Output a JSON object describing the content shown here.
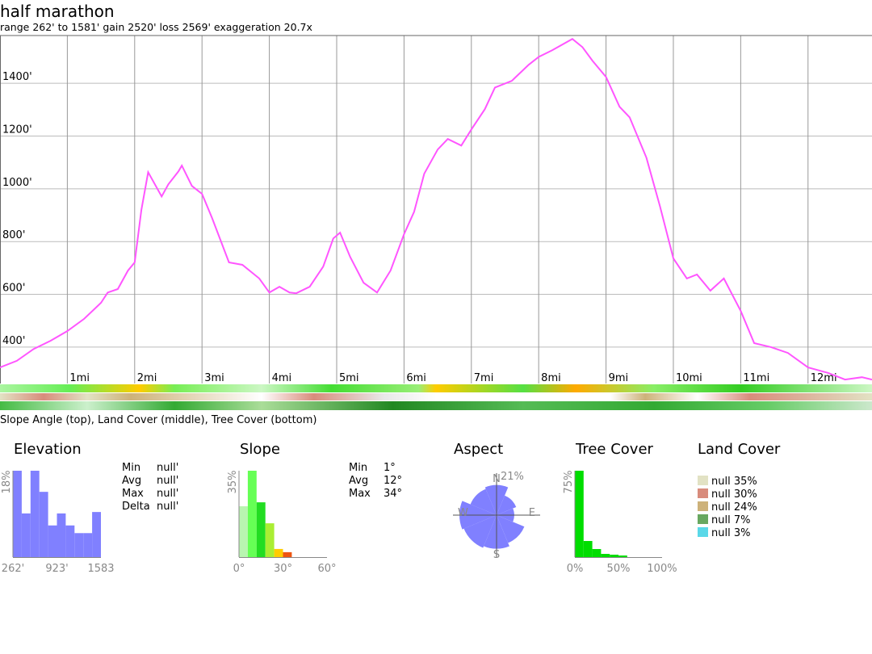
{
  "header": {
    "title": "half marathon",
    "stats": "range 262' to 1581'  gain 2520'  loss 2569'  exaggeration 20.7x"
  },
  "chart_data": [
    {
      "type": "line",
      "color": "#ff55ff",
      "grid": true,
      "x": [
        0,
        0.25,
        0.5,
        0.75,
        1.0,
        1.25,
        1.5,
        1.6,
        1.75,
        1.9,
        2.0,
        2.1,
        2.2,
        2.4,
        2.5,
        2.65,
        2.7,
        2.85,
        3.0,
        3.15,
        3.4,
        3.6,
        3.85,
        4.0,
        4.15,
        4.3,
        4.4,
        4.6,
        4.8,
        4.95,
        5.05,
        5.2,
        5.4,
        5.6,
        5.8,
        6.0,
        6.15,
        6.3,
        6.5,
        6.65,
        6.85,
        7.0,
        7.2,
        7.35,
        7.6,
        7.85,
        8.0,
        8.2,
        8.5,
        8.65,
        8.8,
        9.0,
        9.2,
        9.35,
        9.6,
        9.8,
        10.0,
        10.2,
        10.35,
        10.55,
        10.75,
        11.0,
        11.2,
        11.45,
        11.7,
        12.0,
        12.3,
        12.55,
        12.8,
        12.95
      ],
      "values": [
        323,
        348,
        393,
        424,
        461,
        507,
        568,
        607,
        620,
        690,
        721,
        920,
        1063,
        971,
        1017,
        1066,
        1088,
        1011,
        981,
        889,
        721,
        712,
        660,
        607,
        629,
        607,
        604,
        629,
        705,
        812,
        834,
        742,
        644,
        607,
        690,
        828,
        913,
        1057,
        1149,
        1189,
        1164,
        1225,
        1302,
        1384,
        1409,
        1470,
        1500,
        1525,
        1568,
        1537,
        1485,
        1424,
        1311,
        1271,
        1118,
        935,
        736,
        660,
        675,
        614,
        660,
        537,
        415,
        400,
        378,
        323,
        302,
        277,
        286,
        277
      ],
      "xlim": [
        0,
        12.95
      ],
      "ylim": [
        262,
        1581
      ],
      "xticks": [
        {
          "value": 1,
          "label": "1mi"
        },
        {
          "value": 2,
          "label": "2mi"
        },
        {
          "value": 3,
          "label": "3mi"
        },
        {
          "value": 4,
          "label": "4mi"
        },
        {
          "value": 5,
          "label": "5mi"
        },
        {
          "value": 6,
          "label": "6mi"
        },
        {
          "value": 7,
          "label": "7mi"
        },
        {
          "value": 8,
          "label": "8mi"
        },
        {
          "value": 9,
          "label": "9mi"
        },
        {
          "value": 10,
          "label": "10mi"
        },
        {
          "value": 11,
          "label": "11mi"
        },
        {
          "value": 12,
          "label": "12mi"
        }
      ],
      "yticks": [
        {
          "value": 400,
          "label": "400'"
        },
        {
          "value": 600,
          "label": "600'"
        },
        {
          "value": 800,
          "label": "800'"
        },
        {
          "value": 1000,
          "label": "1000'"
        },
        {
          "value": 1200,
          "label": "1200'"
        },
        {
          "value": 1400,
          "label": "1400'"
        }
      ],
      "caption": "Slope Angle (top), Land Cover (middle), Tree Cover (bottom)"
    },
    {
      "type": "histogram",
      "title": "Elevation",
      "color": "#8080ff",
      "bins": [
        262,
        394.1,
        526.2,
        658.3,
        790.4,
        922.5,
        1054.6,
        1186.7,
        1318.8,
        1450.9,
        1583
      ],
      "values": [
        18,
        9.1,
        18,
        13.6,
        6.6,
        9.1,
        6.6,
        5.0,
        5.0,
        9.4
      ],
      "xlim": [
        262,
        1583
      ],
      "ylim": [
        0,
        18
      ],
      "xticks": [
        {
          "value": 262,
          "label": "262'"
        },
        {
          "value": 923,
          "label": "923'"
        },
        1583
      ],
      "yticks": [
        {
          "value": 18,
          "label": "18%"
        }
      ]
    },
    {
      "type": "histogram",
      "title": "Slope",
      "bins": [
        0,
        6,
        12,
        18,
        24,
        30,
        36
      ],
      "values": [
        20.6,
        35,
        22.2,
        13.7,
        3.3,
        2
      ],
      "colors": [
        "#b8f5b0",
        "#66ff55",
        "#22dd22",
        "#aaee33",
        "#ffcc00",
        "#ee5511"
      ],
      "xlim": [
        0,
        60
      ],
      "ylim": [
        0,
        35
      ],
      "xticks": [
        {
          "value": 0,
          "label": "0°"
        },
        {
          "value": 30,
          "label": "30°"
        },
        {
          "value": 60,
          "label": "60°"
        }
      ],
      "yticks": [
        {
          "value": 35,
          "label": "35%"
        }
      ]
    },
    {
      "type": "rose",
      "title": "Aspect",
      "color": "#8080ff",
      "categories": [
        "N",
        null,
        "E",
        null,
        "S",
        null,
        "W",
        null
      ],
      "values": [
        17,
        12,
        10,
        17,
        19,
        20,
        21,
        16
      ],
      "rlim": [
        0,
        21
      ],
      "rticks": [
        {
          "value": 21,
          "label": "21%"
        }
      ]
    },
    {
      "type": "histogram",
      "title": "Tree Cover",
      "color": "#00dd00",
      "bins": [
        0,
        10,
        20,
        30,
        40,
        50,
        60
      ],
      "values": [
        75,
        14,
        7,
        2.8,
        2.1,
        1.4
      ],
      "xlim": [
        0,
        100
      ],
      "ylim": [
        0,
        75
      ],
      "xticks": [
        {
          "value": 0,
          "label": "0%"
        },
        {
          "value": 50,
          "label": "50%"
        },
        {
          "value": 100,
          "label": "100%"
        }
      ],
      "yticks": [
        {
          "value": 75,
          "label": "75%"
        }
      ]
    }
  ],
  "elevation_stats": [
    {
      "label": "Min",
      "value": "null'"
    },
    {
      "label": "Avg",
      "value": "null'"
    },
    {
      "label": "Max",
      "value": "null'"
    },
    {
      "label": "Delta",
      "value": "null'"
    }
  ],
  "slope_stats": [
    {
      "label": "Min",
      "value": "1°"
    },
    {
      "label": "Avg",
      "value": "12°"
    },
    {
      "label": "Max",
      "value": "34°"
    }
  ],
  "land_cover": {
    "title": "Land Cover",
    "entries": [
      {
        "label": "null 35%",
        "color": "#e2e2c4"
      },
      {
        "label": "null 30%",
        "color": "#d88c7c"
      },
      {
        "label": "null 24%",
        "color": "#cdb27a"
      },
      {
        "label": "null 7%",
        "color": "#68a860"
      },
      {
        "label": "null 3%",
        "color": "#5ad8e8"
      }
    ]
  }
}
